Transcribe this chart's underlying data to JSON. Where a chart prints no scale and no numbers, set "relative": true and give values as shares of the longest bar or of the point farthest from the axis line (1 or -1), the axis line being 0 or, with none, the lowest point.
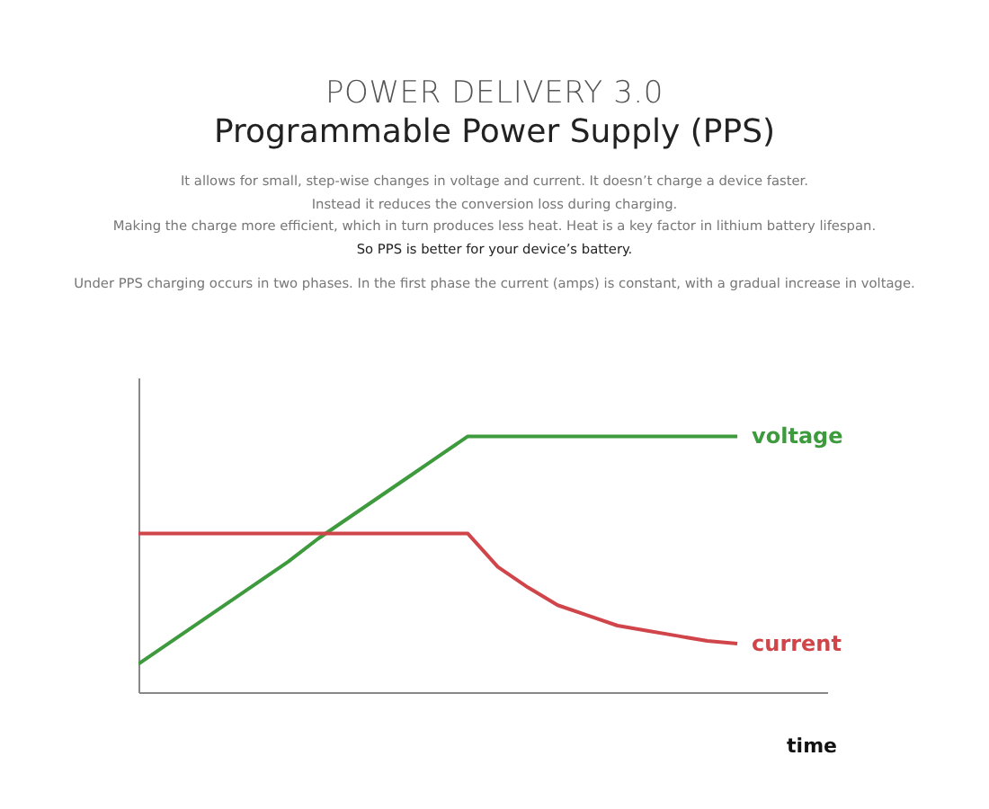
{
  "chart_data": {
    "type": "line",
    "title": "POWER DELIVERY 3.0",
    "subtitle": "Programmable Power Supply (PPS)",
    "xlabel": "time",
    "relative": true,
    "tick_labels": false,
    "annotations": [
      "It allows for small, step-wise changes in voltage and current. It doesn’t charge a device faster.",
      "Instead it reduces the conversion loss during charging.",
      "Making the charge more efficient, which in turn produces less heat. Heat is a key factor in lithium battery lifespan.",
      "So PPS is better for your device’s battery.",
      "Under PPS charging occurs in two phases. In the first phase the current (amps) is constant, with a gradual increase in voltage."
    ],
    "categories": [
      null,
      null,
      null,
      null,
      null,
      null,
      null,
      null,
      null,
      null,
      null,
      null,
      null,
      null,
      null,
      null,
      null,
      null,
      null,
      null,
      null
    ],
    "series": [
      {
        "name": "voltage",
        "color": "#3d9a3d",
        "values": [
          0.11,
          0.19,
          0.27,
          0.35,
          0.43,
          0.51,
          0.6,
          0.68,
          0.76,
          0.84,
          0.92,
          1.0,
          1.0,
          1.0,
          1.0,
          1.0,
          1.0,
          1.0,
          1.0,
          1.0,
          1.0
        ]
      },
      {
        "name": "current",
        "color": "#d0454a",
        "values": [
          0.62,
          0.62,
          0.62,
          0.62,
          0.62,
          0.62,
          0.62,
          0.62,
          0.62,
          0.62,
          0.62,
          0.62,
          0.49,
          0.41,
          0.34,
          0.3,
          0.26,
          0.24,
          0.22,
          0.2,
          0.19
        ]
      }
    ]
  }
}
